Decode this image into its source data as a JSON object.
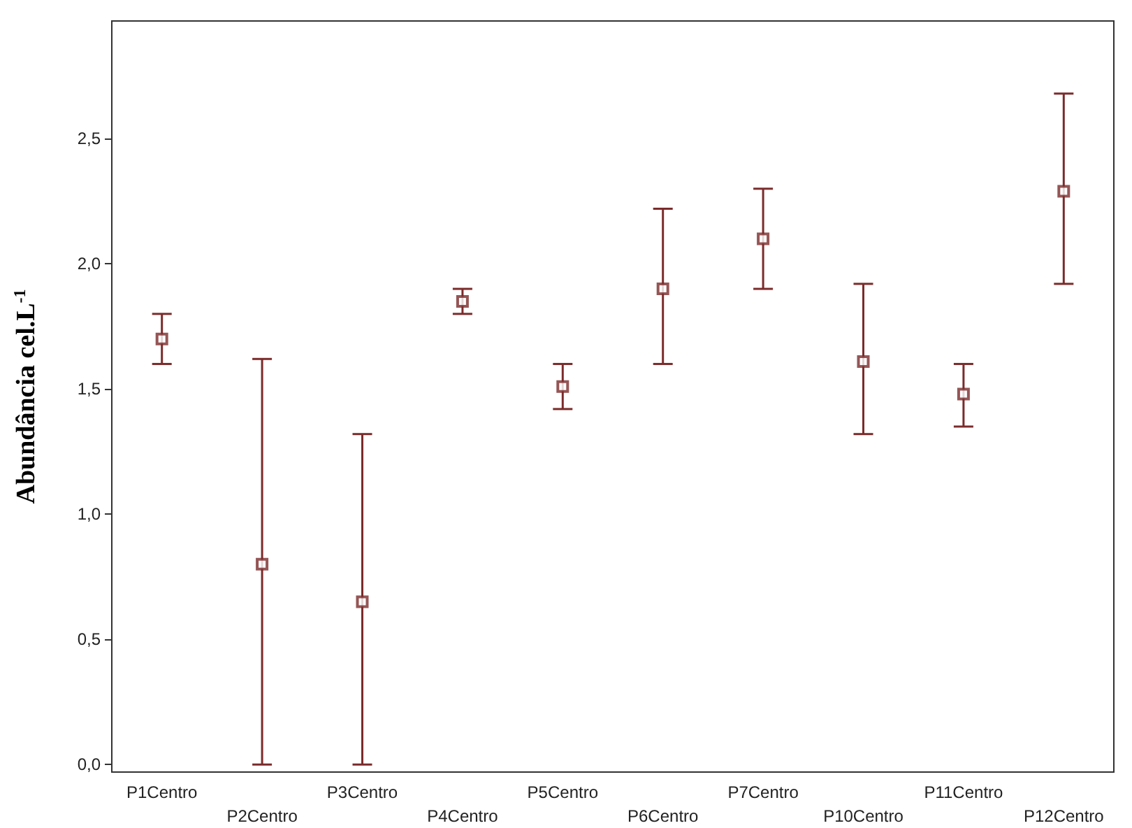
{
  "chart_data": {
    "type": "scatter",
    "ylabel": "Abundância cel.L$^{-1}$",
    "categories": [
      "P1Centro",
      "P2Centro",
      "P3Centro",
      "P4Centro",
      "P5Centro",
      "P6Centro",
      "P7Centro",
      "P10Centro",
      "P11Centro",
      "P12Centro"
    ],
    "series": [
      {
        "color": "#7b2b2b",
        "values": [
          1.7,
          0.8,
          0.65,
          1.85,
          1.51,
          1.9,
          2.1,
          1.61,
          1.48,
          2.29
        ],
        "errors": [
          [
            1.6,
            1.8
          ],
          [
            0,
            1.62
          ],
          [
            0,
            1.32
          ],
          [
            1.8,
            1.9
          ],
          [
            1.42,
            1.6
          ],
          [
            1.6,
            2.22
          ],
          [
            1.9,
            2.3
          ],
          [
            1.32,
            1.92
          ],
          [
            1.35,
            1.6
          ],
          [
            1.92,
            2.68
          ]
        ]
      }
    ],
    "marker": "square",
    "ylim": [
      -0.03,
      2.97
    ],
    "yticks": [
      {
        "value": 0,
        "label": "0,0"
      },
      {
        "value": 0.5,
        "label": "0,5"
      },
      {
        "value": 1,
        "label": "1,0"
      },
      {
        "value": 1.5,
        "label": "1,5"
      },
      {
        "value": 2,
        "label": "2,0"
      },
      {
        "value": 2.5,
        "label": "2,5"
      }
    ],
    "grid": false
  }
}
